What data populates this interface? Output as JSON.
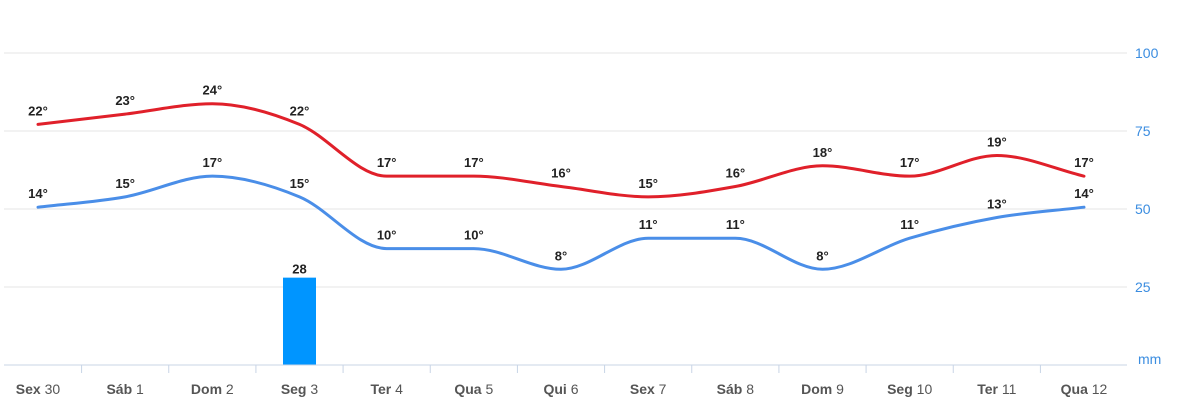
{
  "chart_data": {
    "type": "line",
    "categories": [
      {
        "day": "Sex",
        "date": "30"
      },
      {
        "day": "Sáb",
        "date": "1"
      },
      {
        "day": "Dom",
        "date": "2"
      },
      {
        "day": "Seg",
        "date": "3"
      },
      {
        "day": "Ter",
        "date": "4"
      },
      {
        "day": "Qua",
        "date": "5"
      },
      {
        "day": "Qui",
        "date": "6"
      },
      {
        "day": "Sex",
        "date": "7"
      },
      {
        "day": "Sáb",
        "date": "8"
      },
      {
        "day": "Dom",
        "date": "9"
      },
      {
        "day": "Seg",
        "date": "10"
      },
      {
        "day": "Ter",
        "date": "11"
      },
      {
        "day": "Qua",
        "date": "12"
      }
    ],
    "series": [
      {
        "values": [
          22,
          23,
          24,
          22,
          17,
          17,
          16,
          15,
          16,
          18,
          17,
          19,
          17
        ],
        "color": "#e0202a"
      },
      {
        "values": [
          14,
          15,
          17,
          15,
          10,
          10,
          8,
          11,
          11,
          8,
          11,
          13,
          14
        ],
        "color": "#4a8ee8"
      }
    ],
    "precipitation": {
      "type": "bar",
      "values": [
        null,
        null,
        null,
        28,
        null,
        null,
        null,
        null,
        null,
        null,
        null,
        null,
        null
      ],
      "color": "#0095ff"
    },
    "unit_suffix": "°",
    "y_right": {
      "ticks": [
        25,
        50,
        75,
        100
      ],
      "unit": "mm",
      "range": [
        0,
        100
      ]
    },
    "grid": true
  }
}
